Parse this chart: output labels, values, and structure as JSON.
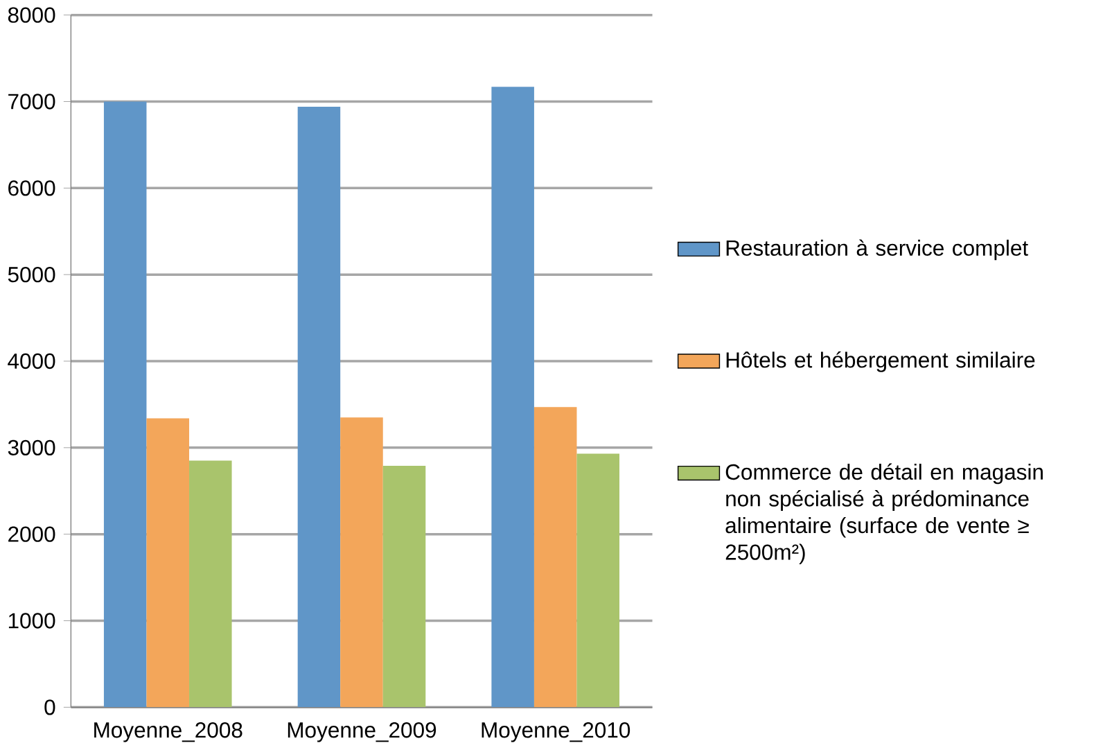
{
  "chart_data": {
    "type": "bar",
    "categories": [
      "Moyenne_2008",
      "Moyenne_2009",
      "Moyenne_2010"
    ],
    "series": [
      {
        "name": "Restauration à service complet",
        "color": "#6096c8",
        "values": [
          7000,
          6940,
          7170
        ]
      },
      {
        "name": "Hôtels et hébergement similaire",
        "color": "#f3a65a",
        "values": [
          3340,
          3350,
          3470
        ]
      },
      {
        "name": "Commerce de détail en magasin non spécialisé à prédominance alimentaire (surface de vente ≥ 2500m²)",
        "color": "#a9c46c",
        "values": [
          2850,
          2790,
          2930
        ]
      }
    ],
    "ylim": [
      0,
      8000
    ],
    "yticks": [
      0,
      1000,
      2000,
      3000,
      4000,
      5000,
      6000,
      7000,
      8000
    ],
    "grid": "y",
    "legend": "right"
  }
}
